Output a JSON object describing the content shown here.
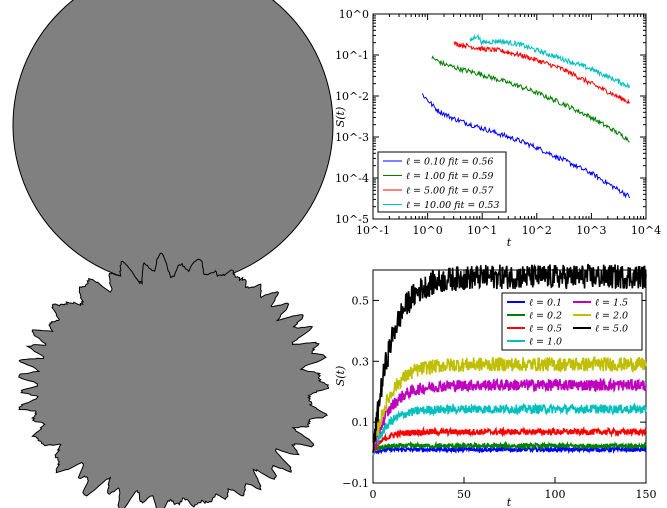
{
  "chart_data": [
    {
      "type": "image",
      "panel": "top-left",
      "description_visible": "grey filled circular domain"
    },
    {
      "type": "line",
      "panel": "top-right",
      "xscale": "log",
      "yscale": "log",
      "xlabel": "t",
      "ylabel": "S(t)",
      "xlim": [
        0.1,
        10000
      ],
      "ylim": [
        1e-05,
        1
      ],
      "x_ticklabels": [
        "10^-1",
        "10^0",
        "10^1",
        "10^2",
        "10^3",
        "10^4"
      ],
      "y_ticklabels": [
        "10^-5",
        "10^-4",
        "10^-3",
        "10^-2",
        "10^-1",
        "10^0"
      ],
      "legend_position": "lower-left",
      "series": [
        {
          "name": "ℓ = 0.10    fit = 0.56",
          "color": "#0000ff",
          "x": [
            0.8,
            1.5,
            3,
            8,
            20,
            50,
            100,
            300,
            1000,
            5000
          ],
          "y": [
            0.011,
            0.0045,
            0.0028,
            0.0018,
            0.0012,
            0.0008,
            0.00055,
            0.00028,
            0.00013,
            3.5e-05
          ]
        },
        {
          "name": "ℓ = 1.00    fit = 0.59",
          "color": "#008000",
          "x": [
            1.2,
            2,
            4,
            8,
            20,
            50,
            100,
            300,
            1000,
            5000
          ],
          "y": [
            0.085,
            0.06,
            0.045,
            0.036,
            0.025,
            0.017,
            0.012,
            0.0065,
            0.003,
            0.00085
          ]
        },
        {
          "name": "ℓ = 5.00    fit = 0.57",
          "color": "#ff0000",
          "x": [
            3,
            5,
            10,
            20,
            50,
            100,
            300,
            1000,
            5000
          ],
          "y": [
            0.19,
            0.17,
            0.14,
            0.13,
            0.1,
            0.075,
            0.045,
            0.02,
            0.007
          ]
        },
        {
          "name": "ℓ = 10.00    fit = 0.53",
          "color": "#00bfbf",
          "x": [
            6,
            8,
            10,
            20,
            50,
            100,
            300,
            1000,
            5000
          ],
          "y": [
            0.22,
            0.3,
            0.2,
            0.22,
            0.18,
            0.13,
            0.08,
            0.045,
            0.017
          ]
        }
      ]
    },
    {
      "type": "image",
      "panel": "bottom-left",
      "description_visible": "grey filled domain with rough fingered boundary"
    },
    {
      "type": "line",
      "panel": "bottom-right",
      "xlabel": "t",
      "ylabel": "S(t)",
      "xlim": [
        0,
        150
      ],
      "ylim": [
        -0.1,
        0.6
      ],
      "x_ticks": [
        0,
        50,
        100,
        150
      ],
      "y_ticks": [
        -0.1,
        0.1,
        0.3,
        0.5
      ],
      "legend_position": "upper-right",
      "series": [
        {
          "name": "ℓ = 0.1",
          "color": "#0000ff",
          "plateau": 0.01,
          "rise_time": 3
        },
        {
          "name": "ℓ = 0.2",
          "color": "#008000",
          "plateau": 0.022,
          "rise_time": 3
        },
        {
          "name": "ℓ = 0.5",
          "color": "#ff0000",
          "plateau": 0.068,
          "rise_time": 6
        },
        {
          "name": "ℓ = 1.0",
          "color": "#00bfbf",
          "plateau": 0.143,
          "rise_time": 8
        },
        {
          "name": "ℓ = 1.5",
          "color": "#bf00bf",
          "plateau": 0.222,
          "rise_time": 9
        },
        {
          "name": "ℓ = 2.0",
          "color": "#bfbf00",
          "plateau": 0.29,
          "rise_time": 9
        },
        {
          "name": "ℓ = 5.0",
          "color": "#000000",
          "plateau": 0.578,
          "rise_time": 10
        }
      ]
    }
  ]
}
